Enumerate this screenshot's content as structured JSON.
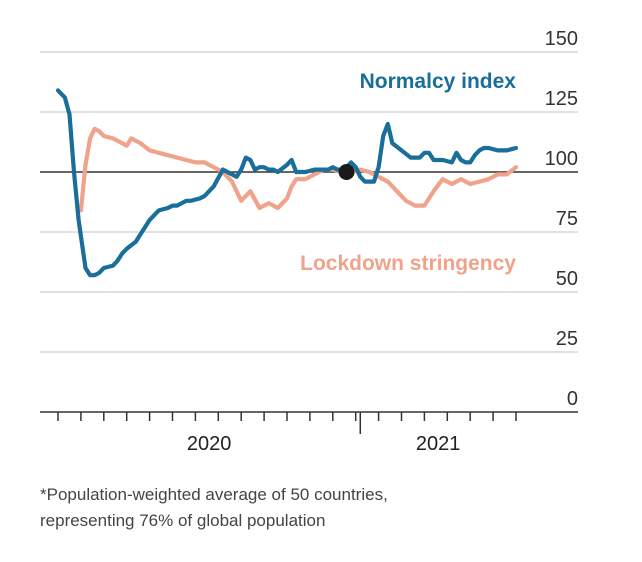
{
  "colors": {
    "normalcy": "#1a6e9a",
    "lockdown": "#f0a28a",
    "gridline": "#cfcfcf",
    "baseline": "#333333",
    "marker": "#1a1a1a"
  },
  "chart_data": {
    "type": "line",
    "ylim": [
      0,
      150
    ],
    "yticks": [
      "150",
      "125",
      "100",
      "75",
      "50",
      "25",
      "0"
    ],
    "ytick_values": [
      150,
      125,
      100,
      75,
      50,
      25,
      0
    ],
    "reference_line": 100,
    "xlim": [
      0,
      100
    ],
    "xtick_labels": [
      {
        "label": "2020",
        "x": 33
      },
      {
        "label": "2021",
        "x": 83
      }
    ],
    "xticks_minor": [
      0,
      5,
      10,
      15,
      20,
      25,
      30,
      35,
      40,
      45,
      50,
      55,
      60,
      65,
      70,
      75,
      80,
      85,
      90,
      95,
      100
    ],
    "xtick_major": 66,
    "marker": {
      "x": 63,
      "y": 100
    },
    "series": [
      {
        "name": "Normalcy index",
        "key": "normalcy",
        "x": [
          0,
          1.5,
          2.5,
          3.5,
          4.5,
          6,
          7,
          8,
          9,
          10,
          12,
          13,
          14,
          15,
          17,
          18,
          19,
          20,
          21,
          22,
          24,
          25,
          26,
          27,
          28,
          29,
          31,
          32,
          33,
          34,
          36,
          38,
          39,
          40,
          41,
          42,
          43,
          44,
          45,
          46,
          47,
          48,
          50,
          51,
          52,
          54,
          56,
          58,
          59,
          60,
          61,
          62,
          63,
          64,
          65,
          66,
          67,
          68,
          69,
          70,
          71,
          72,
          73,
          75,
          77,
          79,
          80,
          81,
          82,
          84,
          86,
          87,
          88,
          89,
          90,
          91,
          92,
          93,
          94,
          96,
          98,
          100
        ],
        "y": [
          134,
          131,
          124,
          100,
          80,
          60,
          57,
          57,
          58,
          60,
          61,
          63,
          66,
          68,
          71,
          74,
          77,
          80,
          82,
          84,
          85,
          86,
          86,
          87,
          88,
          88,
          89,
          90,
          92,
          94,
          101,
          99,
          98,
          101,
          106,
          105,
          101,
          102,
          102,
          101,
          101,
          100,
          103,
          105,
          100,
          100,
          101,
          101,
          101,
          102,
          101,
          101,
          102,
          104,
          102,
          98,
          96,
          96,
          96,
          102,
          115,
          120,
          112,
          109,
          106,
          106,
          108,
          108,
          105,
          105,
          104,
          108,
          105,
          104,
          104,
          107,
          109,
          110,
          110,
          109,
          109,
          110
        ]
      },
      {
        "name": "Lockdown stringency",
        "key": "lockdown",
        "x": [
          5,
          6,
          7,
          8,
          9,
          10,
          12,
          14,
          15,
          16,
          18,
          20,
          22,
          24,
          26,
          28,
          30,
          32,
          33,
          34,
          36,
          38,
          40,
          42,
          44,
          46,
          48,
          50,
          51,
          52,
          54,
          56,
          58,
          60,
          62,
          64,
          66,
          68,
          70,
          72,
          74,
          76,
          78,
          80,
          82,
          84,
          86,
          88,
          90,
          92,
          94,
          96,
          98,
          100
        ],
        "y": [
          84,
          103,
          114,
          118,
          117,
          115,
          114,
          112,
          111,
          114,
          112,
          109,
          108,
          107,
          106,
          105,
          104,
          104,
          103,
          102,
          100,
          96,
          88,
          92,
          85,
          87,
          85,
          89,
          94,
          97,
          97,
          99,
          101,
          101,
          100,
          100,
          101,
          100,
          98,
          96,
          92,
          88,
          86,
          86,
          92,
          97,
          95,
          97,
          95,
          96,
          97,
          99,
          99,
          102
        ]
      }
    ]
  },
  "labels": {
    "normalcy": "Normalcy index",
    "lockdown": "Lockdown stringency"
  },
  "footnote": {
    "line1": "*Population-weighted average of 50 countries,",
    "line2": "representing 76% of global population"
  }
}
